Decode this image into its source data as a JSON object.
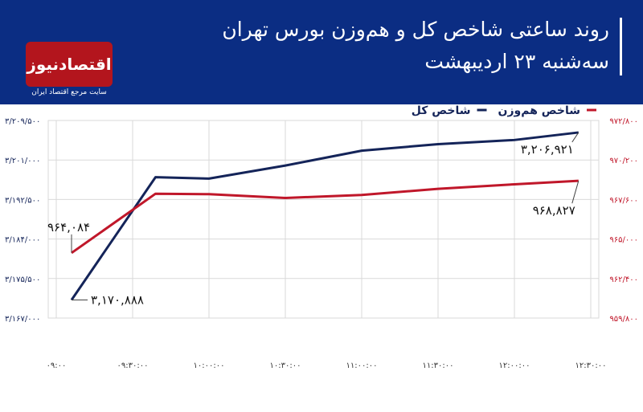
{
  "header": {
    "title_line1": "روند ساعتی شاخص کل و هم‌وزن بورس تهران",
    "title_line2": "سه‌شنبه ۲۳ اردیبهشت",
    "logo_text": "اقتصادنیوز",
    "logo_subtitle": "سایت مرجع اقتصاد ایران"
  },
  "colors": {
    "header_bg": "#0b2d83",
    "logo_bg": "#b3151d",
    "series_total": "#142459",
    "series_equal": "#c0172a",
    "grid": "#d9d9d9"
  },
  "chart_data": {
    "type": "line",
    "title": "روند ساعتی شاخص کل و هم‌وزن بورس تهران",
    "x": [
      "۰۹:۰۰",
      "۰۹:۳۰:۰۰",
      "۱۰:۰۰:۰۰",
      "۱۰:۳۰:۰۰",
      "۱۱:۰۰:۰۰",
      "۱۱:۳۰:۰۰",
      "۱۲:۰۰:۰۰",
      "۱۲:۳۰:۰۰"
    ],
    "x_hours": [
      9.0,
      9.5,
      10.0,
      10.5,
      11.0,
      11.5,
      12.0,
      12.5
    ],
    "left_axis": {
      "ylim": [
        3167000,
        3209500
      ],
      "ticks": [
        3167000,
        3175500,
        3184000,
        3192500,
        3201000,
        3209500
      ],
      "tick_labels": [
        "۳/۱۶۷/۰۰۰",
        "۳/۱۷۵/۵۰۰",
        "۳/۱۸۴/۰۰۰",
        "۳/۱۹۲/۵۰۰",
        "۳/۲۰۱/۰۰۰",
        "۳/۲۰۹/۵۰۰"
      ]
    },
    "right_axis": {
      "ylim": [
        959800,
        972800
      ],
      "ticks": [
        959800,
        962400,
        965000,
        967600,
        970200,
        972800
      ],
      "tick_labels": [
        "۹۵۹/۸۰۰",
        "۹۶۲/۴۰۰",
        "۹۶۵/۰۰۰",
        "۹۶۷/۶۰۰",
        "۹۷۰/۲۰۰",
        "۹۷۲/۸۰۰"
      ]
    },
    "grid": true,
    "legend_position": "top-right",
    "series": [
      {
        "name": "شاخص کل",
        "axis": "left",
        "color": "#142459",
        "points": [
          [
            9.1,
            3170888
          ],
          [
            9.65,
            3197300
          ],
          [
            10.0,
            3197000
          ],
          [
            10.5,
            3199800
          ],
          [
            11.0,
            3203000
          ],
          [
            11.5,
            3204400
          ],
          [
            12.0,
            3205300
          ],
          [
            12.42,
            3206921
          ]
        ],
        "labels": [
          {
            "index": 0,
            "text": "۳,۱۷۰,۸۸۸"
          },
          {
            "index": 7,
            "text": "۳,۲۰۶,۹۲۱"
          }
        ]
      },
      {
        "name": "شاخص هم‌وزن",
        "axis": "right",
        "color": "#c0172a",
        "points": [
          [
            9.1,
            964084
          ],
          [
            9.65,
            967980
          ],
          [
            10.0,
            967950
          ],
          [
            10.5,
            967700
          ],
          [
            11.0,
            967900
          ],
          [
            11.5,
            968300
          ],
          [
            12.0,
            968600
          ],
          [
            12.42,
            968827
          ]
        ],
        "labels": [
          {
            "index": 0,
            "text": "۹۶۴,۰۸۴"
          },
          {
            "index": 7,
            "text": "۹۶۸,۸۲۷"
          }
        ]
      }
    ]
  }
}
